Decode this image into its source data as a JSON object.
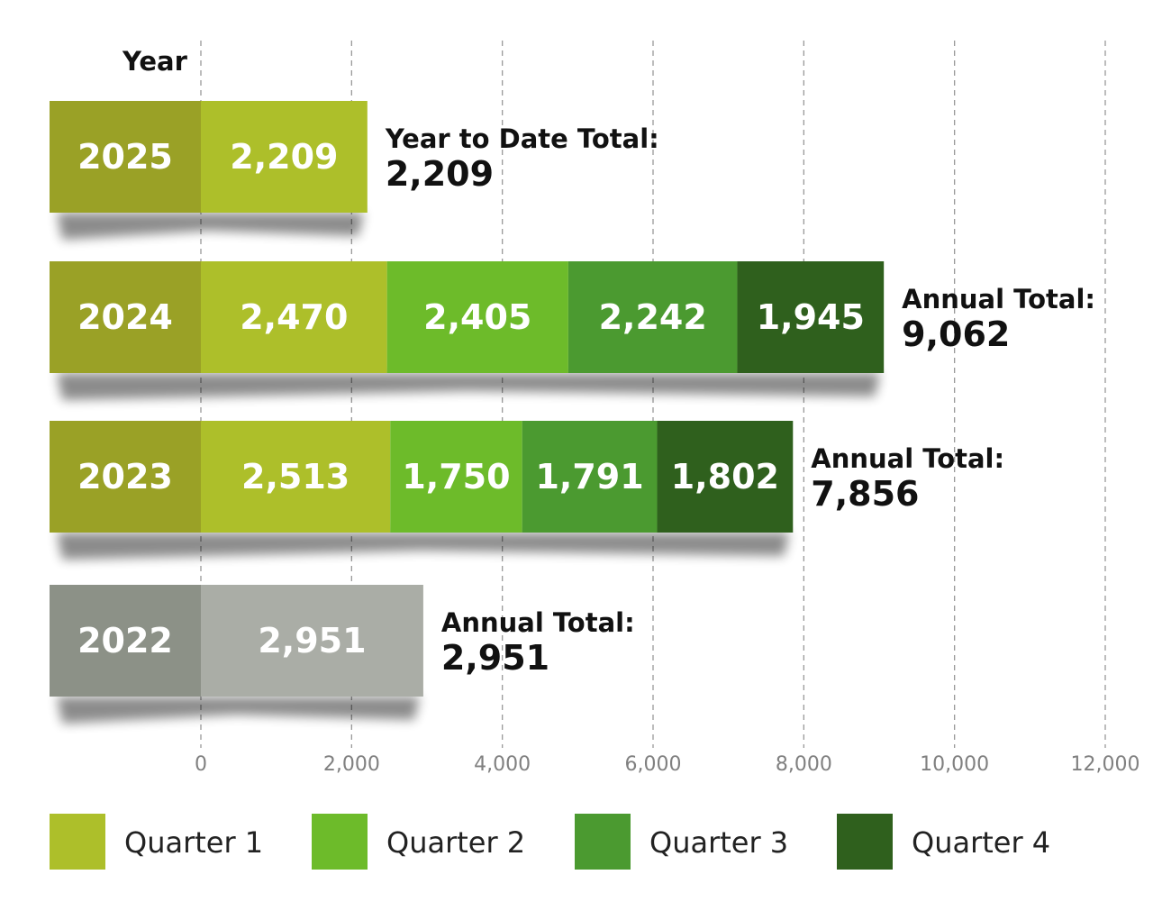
{
  "chart_data": {
    "type": "bar",
    "orientation": "horizontal",
    "stacked": true,
    "category_header": "Year",
    "categories": [
      "2025",
      "2024",
      "2023",
      "2022"
    ],
    "series": [
      {
        "name": "Quarter 1",
        "values": [
          2209,
          2470,
          2513,
          null
        ]
      },
      {
        "name": "Quarter 2",
        "values": [
          null,
          2405,
          1750,
          null
        ]
      },
      {
        "name": "Quarter 3",
        "values": [
          null,
          2242,
          1791,
          null
        ]
      },
      {
        "name": "Quarter 4",
        "values": [
          null,
          1945,
          1802,
          null
        ]
      }
    ],
    "annual_only": [
      null,
      null,
      null,
      2951
    ],
    "value_labels": [
      [
        "2,209"
      ],
      [
        "2,470",
        "2,405",
        "2,242",
        "1,945"
      ],
      [
        "2,513",
        "1,750",
        "1,791",
        "1,802"
      ],
      [
        "2,951"
      ]
    ],
    "totals": [
      {
        "label": "Year to Date Total:",
        "value": "2,209"
      },
      {
        "label": "Annual Total:",
        "value": "9,062"
      },
      {
        "label": "Annual Total:",
        "value": "7,856"
      },
      {
        "label": "Annual Total:",
        "value": "2,951"
      }
    ],
    "xlim": [
      0,
      12000
    ],
    "xticks": [
      0,
      2000,
      4000,
      6000,
      8000,
      10000,
      12000
    ],
    "xtick_labels": [
      "0",
      "2,000",
      "4,000",
      "6,000",
      "8,000",
      "10,000",
      "12,000"
    ],
    "grid": true,
    "legend_position": "bottom",
    "colors": {
      "year_cell": "#9aa126",
      "year_cell_2022": "#8c9187",
      "quarter_1": "#adbf2a",
      "quarter_2": "#6dbb2a",
      "quarter_3": "#4b9a30",
      "quarter_4": "#2f601d",
      "annual_2022": "#aaada6",
      "grid": "#999999"
    }
  }
}
